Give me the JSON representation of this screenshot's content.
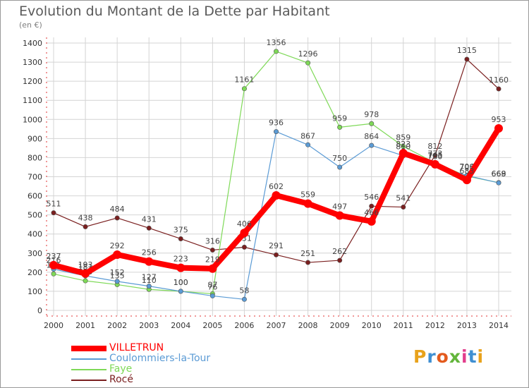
{
  "title": "Evolution du Montant de la Dette par Habitant",
  "unit": "(en €)",
  "logo": {
    "text": "Proxiti",
    "colors": [
      "#e8a21c",
      "#3f8fd2",
      "#e35a1d",
      "#63b53b",
      "#e23d8c",
      "#3f8fd2",
      "#e8a21c"
    ]
  },
  "chart_data": {
    "type": "line",
    "title": "Evolution du Montant de la Dette par Habitant",
    "x": [
      "2000",
      "2001",
      "2002",
      "2003",
      "2004",
      "2005",
      "2006",
      "2007",
      "2008",
      "2009",
      "2010",
      "2011",
      "2012",
      "2013",
      "2014"
    ],
    "yticks": [
      "0",
      "100",
      "200",
      "300",
      "400",
      "500",
      "600",
      "700",
      "800",
      "900",
      "1000",
      "1100",
      "1200",
      "1300",
      "1400"
    ],
    "ylim": [
      0,
      1400
    ],
    "grid": true,
    "legend_position": "bottom-left",
    "series": [
      {
        "name": "Rocé",
        "color": "#7a1f1f",
        "values": [
          511,
          438,
          484,
          431,
          375,
          316,
          331,
          291,
          251,
          262,
          546,
          541,
          812,
          1315,
          1160
        ],
        "labels": [
          "511",
          "438",
          "484",
          "431",
          "375",
          "316",
          "331",
          "291",
          "251",
          "262",
          "546",
          "541",
          "812",
          "1315",
          "1160"
        ]
      },
      {
        "name": "Faye",
        "color": "#7ed957",
        "values": [
          191,
          155,
          135,
          110,
          100,
          87,
          1161,
          1356,
          1296,
          959,
          978,
          859,
          773,
          703,
          669
        ],
        "labels": [
          "191",
          "155",
          "135",
          "110",
          "100",
          "87",
          "1161",
          "1356",
          "1296",
          "959",
          "978",
          "859",
          "773",
          "703",
          "669"
        ]
      },
      {
        "name": "Coulommiers-la-Tour",
        "color": "#5b9bd5",
        "values": [
          216,
          181,
          152,
          127,
          100,
          76,
          58,
          936,
          867,
          750,
          864,
          810,
          760,
          706,
          668
        ],
        "labels": [
          "216",
          "181",
          "152",
          "127",
          "100",
          "76",
          "58",
          "936",
          "867",
          "750",
          "864",
          "810",
          "760",
          "706",
          "668"
        ]
      },
      {
        "name": "VILLETRUN",
        "color": "#ff0000",
        "values": [
          237,
          193,
          292,
          256,
          223,
          219,
          406,
          602,
          559,
          497,
          466,
          823,
          765,
          683,
          953
        ],
        "labels": [
          "237",
          "193",
          "292",
          "256",
          "223",
          "219",
          "406",
          "602",
          "559",
          "497",
          "466",
          "823",
          "765",
          "683",
          "953"
        ]
      }
    ]
  },
  "legend": [
    {
      "name": "VILLETRUN",
      "color": "#ff0000"
    },
    {
      "name": "Coulommiers-la-Tour",
      "color": "#5b9bd5"
    },
    {
      "name": "Faye",
      "color": "#7ed957"
    },
    {
      "name": "Rocé",
      "color": "#7a1f1f"
    }
  ]
}
